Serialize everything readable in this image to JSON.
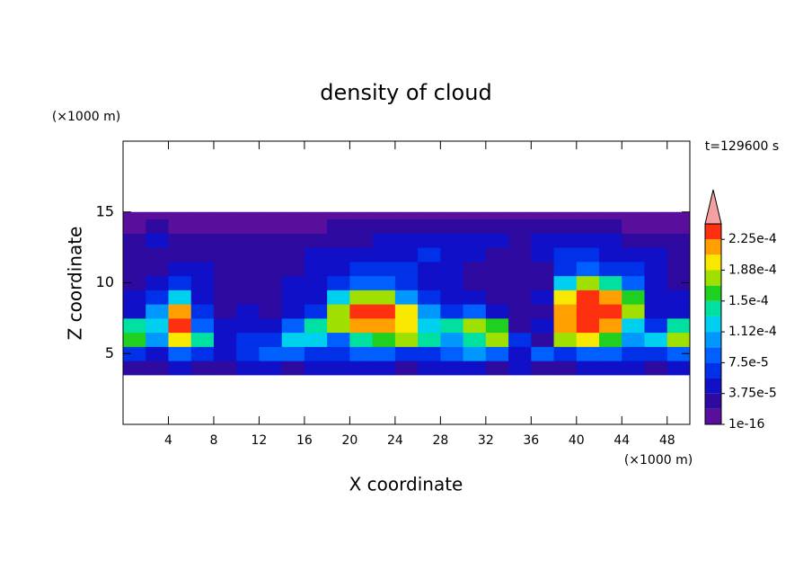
{
  "chart_data": {
    "type": "heatmap",
    "title": "density of cloud",
    "xlabel": "X coordinate",
    "ylabel": "Z coordinate",
    "xunit": "(×1000 m)",
    "yunit": "(×1000 m)",
    "annotation": "t=129600 s",
    "xlim": [
      0,
      50
    ],
    "ylim": [
      0,
      20
    ],
    "xticks": [
      4,
      8,
      12,
      16,
      20,
      24,
      28,
      32,
      36,
      40,
      44,
      48
    ],
    "yticks": [
      5,
      10,
      15
    ],
    "x_edges": [
      0,
      2,
      4,
      6,
      8,
      10,
      12,
      14,
      16,
      18,
      20,
      22,
      24,
      26,
      28,
      30,
      32,
      34,
      36,
      38,
      40,
      42,
      44,
      46,
      48,
      50
    ],
    "z_edges": [
      3.5,
      4.5,
      5.5,
      6.5,
      7.5,
      8.5,
      9.5,
      10.5,
      11.5,
      12.5,
      13.5,
      14.5,
      15
    ],
    "z": [
      [
        3e-05,
        3e-05,
        4e-05,
        3e-05,
        3e-05,
        4e-05,
        5e-05,
        3e-05,
        4e-05,
        4e-05,
        5e-05,
        4e-05,
        3e-05,
        4e-05,
        5e-05,
        4e-05,
        3e-05,
        4e-05,
        3e-05,
        2e-05,
        4e-05,
        5e-05,
        4e-05,
        3e-05,
        4e-05
      ],
      [
        6e-05,
        5e-05,
        9e-05,
        6e-05,
        5e-05,
        7e-05,
        8e-05,
        9e-05,
        6e-05,
        7e-05,
        9e-05,
        8e-05,
        7e-05,
        6e-05,
        9e-05,
        0.0001,
        8e-05,
        5e-05,
        8e-05,
        7e-05,
        9e-05,
        8e-05,
        7e-05,
        6e-05,
        9e-05
      ],
      [
        0.00015,
        0.00011,
        0.00019,
        0.00014,
        5e-05,
        6e-05,
        6e-05,
        0.00012,
        0.00012,
        9e-05,
        0.00014,
        0.00016,
        0.00018,
        0.00014,
        0.0001,
        0.00014,
        0.00017,
        6e-05,
        3e-05,
        0.00017,
        0.0002,
        0.00016,
        0.0001,
        0.00012,
        0.00018
      ],
      [
        0.00014,
        0.00012,
        0.00023,
        9e-05,
        4e-05,
        5e-05,
        4e-05,
        9e-05,
        0.00014,
        0.00018,
        0.00022,
        0.00022,
        0.00019,
        0.00012,
        0.00014,
        0.00018,
        0.00015,
        3e-05,
        4e-05,
        0.00021,
        0.00023,
        0.00022,
        0.00013,
        6e-05,
        0.00014
      ],
      [
        5e-05,
        0.0001,
        0.00021,
        6e-05,
        3e-05,
        4e-05,
        3e-05,
        5e-05,
        7e-05,
        0.00018,
        0.00023,
        0.00023,
        0.00019,
        0.0001,
        6e-05,
        8e-05,
        5e-05,
        3e-05,
        3e-05,
        0.00022,
        0.00024,
        0.00024,
        0.00017,
        5e-05,
        5e-05
      ],
      [
        4e-05,
        7e-05,
        0.00012,
        5e-05,
        3e-05,
        3e-05,
        3e-05,
        4e-05,
        5e-05,
        0.00012,
        0.00018,
        0.00017,
        0.00011,
        6e-05,
        4e-05,
        4e-05,
        3e-05,
        3e-05,
        4e-05,
        0.00019,
        0.00023,
        0.00022,
        0.00015,
        5e-05,
        4e-05
      ],
      [
        3e-05,
        5e-05,
        6e-05,
        4e-05,
        3e-05,
        3e-05,
        3e-05,
        4e-05,
        5e-05,
        6e-05,
        8e-05,
        8e-05,
        6e-05,
        5e-05,
        4e-05,
        3e-05,
        3e-05,
        3e-05,
        3e-05,
        0.00012,
        0.00017,
        0.00014,
        9e-05,
        5e-05,
        3e-05
      ],
      [
        3e-05,
        3e-05,
        4e-05,
        4e-05,
        3e-05,
        3e-05,
        2e-05,
        3e-05,
        4e-05,
        5e-05,
        6e-05,
        6e-05,
        6e-05,
        5e-05,
        4e-05,
        3e-05,
        3e-05,
        3e-05,
        3e-05,
        7e-05,
        8e-05,
        7e-05,
        6e-05,
        5e-05,
        3e-05
      ],
      [
        2e-05,
        3e-05,
        3e-05,
        3e-05,
        3e-05,
        2e-05,
        2e-05,
        3e-05,
        4e-05,
        4e-05,
        5e-05,
        5e-05,
        5e-05,
        6e-05,
        5e-05,
        4e-05,
        3e-05,
        3e-05,
        4e-05,
        6e-05,
        6e-05,
        5e-05,
        5e-05,
        4e-05,
        3e-05
      ],
      [
        2e-05,
        4e-05,
        3e-05,
        2e-05,
        2e-05,
        2e-05,
        2e-05,
        2e-05,
        2e-05,
        3e-05,
        3e-05,
        4e-05,
        4e-05,
        4e-05,
        4e-05,
        5e-05,
        4e-05,
        3e-05,
        4e-05,
        4e-05,
        4e-05,
        4e-05,
        3e-05,
        3e-05,
        2e-05
      ],
      [
        1e-05,
        2e-05,
        1e-05,
        1e-05,
        1e-05,
        1e-05,
        1e-05,
        1e-05,
        1e-05,
        2e-05,
        2e-05,
        2e-05,
        2e-05,
        2e-05,
        2e-05,
        2e-05,
        2e-05,
        2e-05,
        2e-05,
        2e-05,
        2e-05,
        2e-05,
        1e-05,
        1e-05,
        1e-05
      ],
      [
        1e-05,
        1e-05,
        1e-05,
        1e-05,
        1e-05,
        1e-05,
        1e-05,
        1e-05,
        1e-05,
        1e-05,
        1e-05,
        1e-05,
        1e-05,
        1e-05,
        1e-05,
        1e-05,
        1e-05,
        1e-05,
        1e-05,
        1e-05,
        1e-05,
        1e-05,
        1e-05,
        1e-05,
        1e-05
      ]
    ],
    "levels": [
      1e-16,
      1.875e-05,
      3.75e-05,
      5.625e-05,
      7.5e-05,
      9.375e-05,
      0.0001125,
      0.00013125,
      0.00015,
      0.00016875,
      0.0001875,
      0.00020625,
      0.000225,
      0.00024375
    ],
    "colors": [
      "#5a0f9c",
      "#2e0aa0",
      "#1010c8",
      "#0030e8",
      "#0060ff",
      "#0098ff",
      "#00d0f0",
      "#00e0a0",
      "#20d020",
      "#a0e000",
      "#f8e800",
      "#ffa000",
      "#ff3010"
    ],
    "extend_color": "#f4a0a0",
    "colorbar_ticks": [
      {
        "value": 1e-16,
        "label": "1e-16"
      },
      {
        "value": 3.75e-05,
        "label": "3.75e-5"
      },
      {
        "value": 7.5e-05,
        "label": "7.5e-5"
      },
      {
        "value": 0.0001125,
        "label": "1.12e-4"
      },
      {
        "value": 0.00015,
        "label": "1.5e-4"
      },
      {
        "value": 0.0001875,
        "label": "1.88e-4"
      },
      {
        "value": 0.000225,
        "label": "2.25e-4"
      }
    ]
  }
}
